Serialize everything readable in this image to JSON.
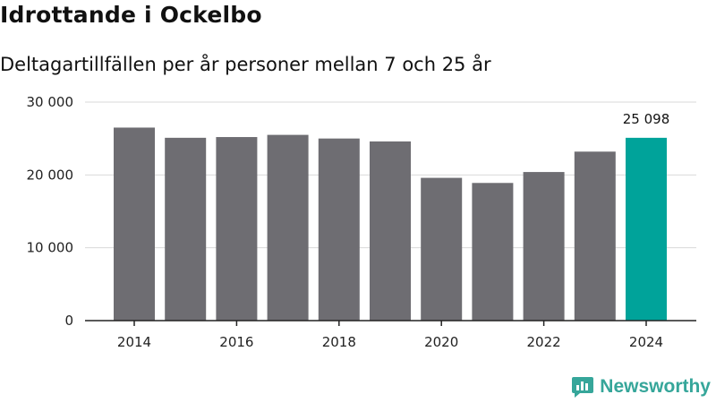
{
  "chart_data": {
    "type": "bar",
    "title": "Idrottande i Ockelbo",
    "subtitle": "Deltagartillfällen per år personer mellan 7 och 25 år",
    "categories": [
      "2014",
      "2015",
      "2016",
      "2017",
      "2018",
      "2019",
      "2020",
      "2021",
      "2022",
      "2023",
      "2024"
    ],
    "values": [
      26500,
      25100,
      25200,
      25500,
      25000,
      24600,
      19600,
      18900,
      20400,
      23200,
      25098
    ],
    "x_tick_labels": [
      "2014",
      "2016",
      "2018",
      "2020",
      "2022",
      "2024"
    ],
    "y_ticks": [
      0,
      10000,
      20000,
      30000
    ],
    "y_tick_labels": [
      "0",
      "10 000",
      "20 000",
      "30 000"
    ],
    "ylim": [
      0,
      30000
    ],
    "xlabel": "",
    "ylabel": "",
    "highlight_index": 10,
    "highlight_label": "25 098",
    "colors": {
      "bar": "#6e6d72",
      "highlight": "#00a39a",
      "grid": "#d9d9d9",
      "axis": "#222222"
    }
  },
  "brand": {
    "name": "Newsworthy",
    "icon": "newsworthy-logo-icon",
    "color": "#36a69a"
  }
}
